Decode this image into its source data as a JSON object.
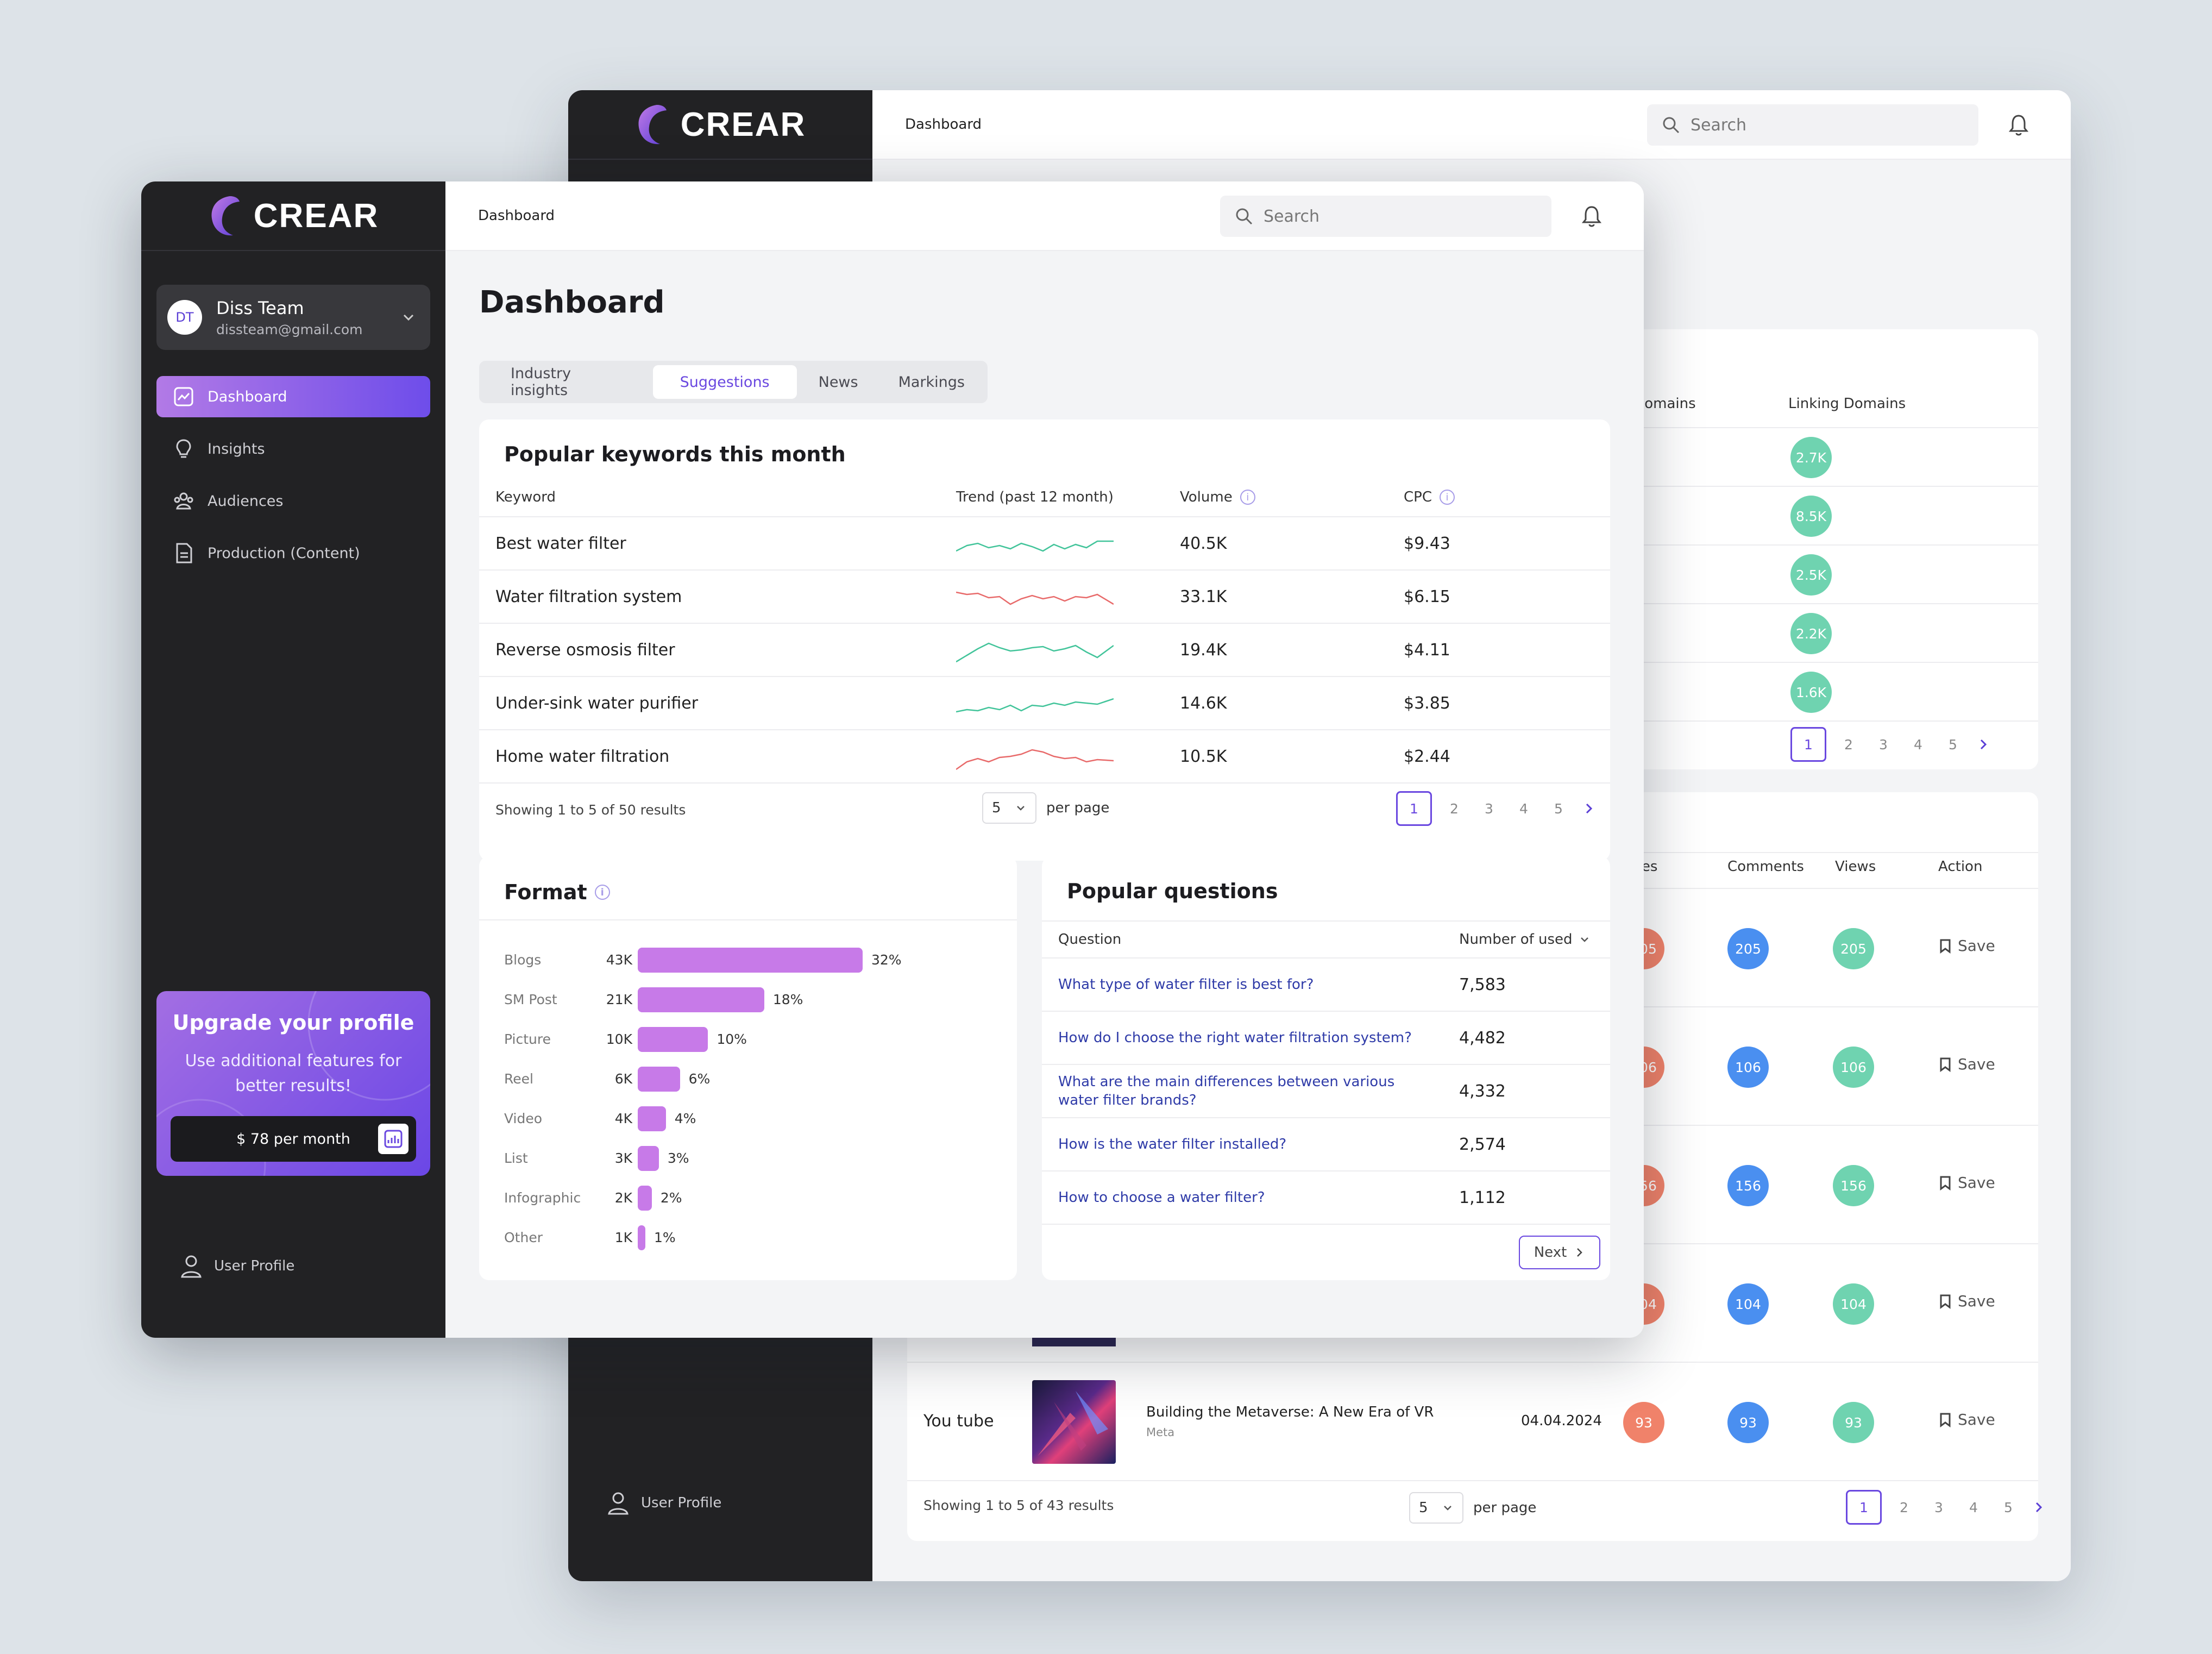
{
  "brand": {
    "name": "CREAR"
  },
  "icons": {
    "search": "search-icon",
    "bell": "bell-icon",
    "user": "user-icon",
    "chevron": "chevron-down-icon"
  },
  "colors": {
    "accent": "#6a48e0",
    "sidebar": "#222224",
    "bar": "#c77ae8",
    "orange": "#f0826a",
    "blue": "#4a8ff0",
    "green": "#6fd3b0"
  },
  "back": {
    "breadcrumb": "Dashboard",
    "search_placeholder": "Search",
    "user_profile": "User Profile",
    "domains": {
      "col_a": "ng Domains",
      "col_b": "Linking Domains",
      "values": [
        "2.7K",
        "8.5K",
        "2.5K",
        "2.2K",
        "1.6K"
      ],
      "pages": [
        "1",
        "2",
        "3",
        "4",
        "5"
      ]
    },
    "content": {
      "headers": {
        "likes": "Likes",
        "comments": "Comments",
        "views": "Views",
        "action": "Action"
      },
      "rows": [
        {
          "value": "205",
          "action": "Save"
        },
        {
          "value": "106",
          "action": "Save"
        },
        {
          "value": "156",
          "action": "Save"
        },
        {
          "value": "104",
          "action": "Save"
        },
        {
          "value": "93",
          "action": "Save",
          "source": "You tube",
          "title": "Building the Metaverse: A New Era of VR",
          "sub": "Meta",
          "date": "04.04.2024"
        }
      ],
      "showing": "Showing 1 to 5 of 43 results",
      "per_page_value": "5",
      "per_page_label": "per page",
      "pages": [
        "1",
        "2",
        "3",
        "4",
        "5"
      ]
    }
  },
  "front": {
    "breadcrumb": "Dashboard",
    "search_placeholder": "Search",
    "team": {
      "initials": "DT",
      "name": "Diss Team",
      "email": "dissteam@gmail.com"
    },
    "nav": [
      {
        "label": "Dashboard",
        "icon": "chart-icon"
      },
      {
        "label": "Insights",
        "icon": "lightbulb-icon"
      },
      {
        "label": "Audiences",
        "icon": "people-icon"
      },
      {
        "label": "Production (Content)",
        "icon": "document-icon"
      }
    ],
    "upgrade": {
      "title": "Upgrade  your profile",
      "text": "Use additional features for better results!",
      "price": "$ 78 per month"
    },
    "user_profile": "User Profile",
    "page_title": "Dashboard",
    "tabs": [
      "Industry insights",
      "Suggestions",
      "News",
      "Markings"
    ],
    "keywords": {
      "title": "Popular keywords this month",
      "headers": {
        "keyword": "Keyword",
        "trend": "Trend (past 12 month)",
        "volume": "Volume",
        "cpc": "CPC"
      },
      "rows": [
        {
          "keyword": "Best water filter",
          "volume": "40.5K",
          "cpc": "$9.43",
          "trend": "up"
        },
        {
          "keyword": "Water filtration system",
          "volume": "33.1K",
          "cpc": "$6.15",
          "trend": "down"
        },
        {
          "keyword": "Reverse osmosis filter",
          "volume": "19.4K",
          "cpc": "$4.11",
          "trend": "up"
        },
        {
          "keyword": "Under-sink water purifier",
          "volume": "14.6K",
          "cpc": "$3.85",
          "trend": "up"
        },
        {
          "keyword": "Home water filtration",
          "volume": "10.5K",
          "cpc": "$2.44",
          "trend": "down"
        }
      ],
      "showing": "Showing 1 to 5 of 50 results",
      "per_page_value": "5",
      "per_page_label": "per page",
      "pages": [
        "1",
        "2",
        "3",
        "4",
        "5"
      ]
    },
    "format": {
      "title": "Format",
      "chart_data": {
        "type": "bar",
        "categories": [
          "Blogs",
          "SM Post",
          "Picture",
          "Reel",
          "Video",
          "List",
          "Infographic",
          "Other"
        ],
        "counts": [
          "43K",
          "21K",
          "10K",
          "6K",
          "4K",
          "3K",
          "2K",
          "1K"
        ],
        "values": [
          32,
          18,
          10,
          6,
          4,
          3,
          2,
          1
        ],
        "labels": [
          "32%",
          "18%",
          "10%",
          "6%",
          "4%",
          "3%",
          "2%",
          "1%"
        ]
      }
    },
    "questions": {
      "title": "Popular questions",
      "headers": {
        "question": "Question",
        "used": "Number of used"
      },
      "rows": [
        {
          "q": "What type of water filter is best for?",
          "n": "7,583"
        },
        {
          "q": "How do I choose the right water filtration system?",
          "n": "4,482"
        },
        {
          "q": "What are the main differences between various water filter brands?",
          "n": "4,332"
        },
        {
          "q": "How is the water filter installed?",
          "n": "2,574"
        },
        {
          "q": "How to choose a water filter?",
          "n": "1,112"
        }
      ],
      "next": "Next"
    }
  }
}
